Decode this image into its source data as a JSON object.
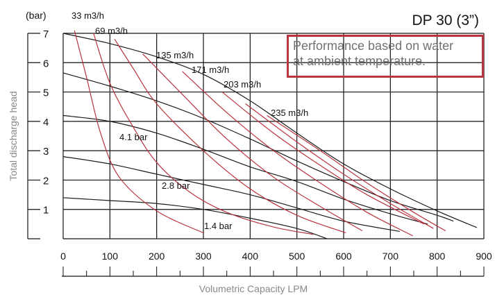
{
  "chart_data": {
    "type": "line",
    "title": "DP 30 (3”)",
    "note": [
      "Performance based on water",
      "at ambient temperature."
    ],
    "xlabel": "Volumetric Capacity LPM",
    "ylabel": "Total discharge head",
    "yunit": "(bar)",
    "xlim": [
      0,
      900
    ],
    "ylim": [
      0,
      7
    ],
    "xticks": [
      0,
      100,
      200,
      300,
      400,
      500,
      600,
      700,
      800,
      900
    ],
    "yticks": [
      1,
      2,
      3,
      4,
      5,
      6,
      7
    ],
    "grid": true,
    "colors": {
      "pressure": "#1a1a1a",
      "air": "#b8343e",
      "note_border": "#b8343e",
      "note_text": "#707070"
    },
    "pressure_curves": [
      {
        "points": [
          [
            0,
            7
          ],
          [
            100,
            6.65
          ],
          [
            200,
            6.2
          ],
          [
            300,
            5.6
          ],
          [
            400,
            4.7
          ],
          [
            500,
            3.6
          ],
          [
            600,
            2.55
          ],
          [
            700,
            1.7
          ],
          [
            800,
            0.95
          ],
          [
            885,
            0.38
          ]
        ]
      },
      {
        "points": [
          [
            0,
            5.65
          ],
          [
            100,
            5.2
          ],
          [
            200,
            4.7
          ],
          [
            300,
            4.1
          ],
          [
            400,
            3.4
          ],
          [
            500,
            2.65
          ],
          [
            600,
            1.95
          ],
          [
            700,
            1.3
          ],
          [
            800,
            0.8
          ],
          [
            835,
            0.6
          ]
        ]
      },
      {
        "label": "4.1 bar",
        "points": [
          [
            0,
            4.2
          ],
          [
            100,
            4.0
          ],
          [
            200,
            3.6
          ],
          [
            300,
            3.05
          ],
          [
            400,
            2.45
          ],
          [
            500,
            1.95
          ],
          [
            600,
            1.35
          ],
          [
            700,
            0.85
          ],
          [
            780,
            0.5
          ]
        ]
      },
      {
        "label": "2.8 bar",
        "points": [
          [
            0,
            2.8
          ],
          [
            100,
            2.55
          ],
          [
            200,
            2.2
          ],
          [
            300,
            1.85
          ],
          [
            400,
            1.5
          ],
          [
            500,
            1.05
          ],
          [
            600,
            0.6
          ],
          [
            720,
            0.25
          ]
        ]
      },
      {
        "label": "1.4 bar",
        "points": [
          [
            0,
            1.4
          ],
          [
            100,
            1.3
          ],
          [
            200,
            1.2
          ],
          [
            300,
            1.0
          ],
          [
            400,
            0.7
          ],
          [
            500,
            0.35
          ],
          [
            565,
            0
          ]
        ]
      }
    ],
    "air_curves": [
      {
        "label": "33 m3/h",
        "points": [
          [
            24,
            7.1
          ],
          [
            50,
            5.5
          ],
          [
            80,
            3.6
          ],
          [
            120,
            2.1
          ],
          [
            200,
            0.95
          ],
          [
            300,
            0.2
          ]
        ]
      },
      {
        "label": "69 m3/h",
        "points": [
          [
            65,
            7.0
          ],
          [
            100,
            5.3
          ],
          [
            150,
            3.8
          ],
          [
            200,
            2.6
          ],
          [
            270,
            1.6
          ],
          [
            350,
            0.9
          ],
          [
            450,
            0.4
          ],
          [
            535,
            0.15
          ]
        ]
      },
      {
        "points": [
          [
            110,
            6.8
          ],
          [
            150,
            5.8
          ],
          [
            200,
            4.6
          ],
          [
            300,
            3.0
          ],
          [
            400,
            1.7
          ],
          [
            500,
            0.8
          ],
          [
            605,
            0.2
          ]
        ]
      },
      {
        "label": "135 m3/h",
        "points": [
          [
            170,
            6.3
          ],
          [
            250,
            5.0
          ],
          [
            350,
            3.4
          ],
          [
            450,
            2.1
          ],
          [
            550,
            1.1
          ],
          [
            640,
            0.27
          ]
        ]
      },
      {
        "label": "171 m3/h",
        "points": [
          [
            255,
            5.7
          ],
          [
            350,
            4.3
          ],
          [
            450,
            3.0
          ],
          [
            550,
            1.9
          ],
          [
            650,
            0.9
          ],
          [
            748,
            0.1
          ]
        ]
      },
      {
        "label": "203 m3/h",
        "points": [
          [
            340,
            5.0
          ],
          [
            450,
            3.6
          ],
          [
            550,
            2.5
          ],
          [
            650,
            1.5
          ],
          [
            772,
            0.5
          ]
        ]
      },
      {
        "points": [
          [
            390,
            4.6
          ],
          [
            500,
            3.3
          ],
          [
            600,
            2.2
          ],
          [
            700,
            1.2
          ],
          [
            792,
            0.35
          ]
        ]
      },
      {
        "label": "235 m3/h",
        "points": [
          [
            436,
            4.2
          ],
          [
            550,
            3.0
          ],
          [
            650,
            1.9
          ],
          [
            750,
            0.9
          ],
          [
            818,
            0.27
          ]
        ]
      }
    ]
  }
}
